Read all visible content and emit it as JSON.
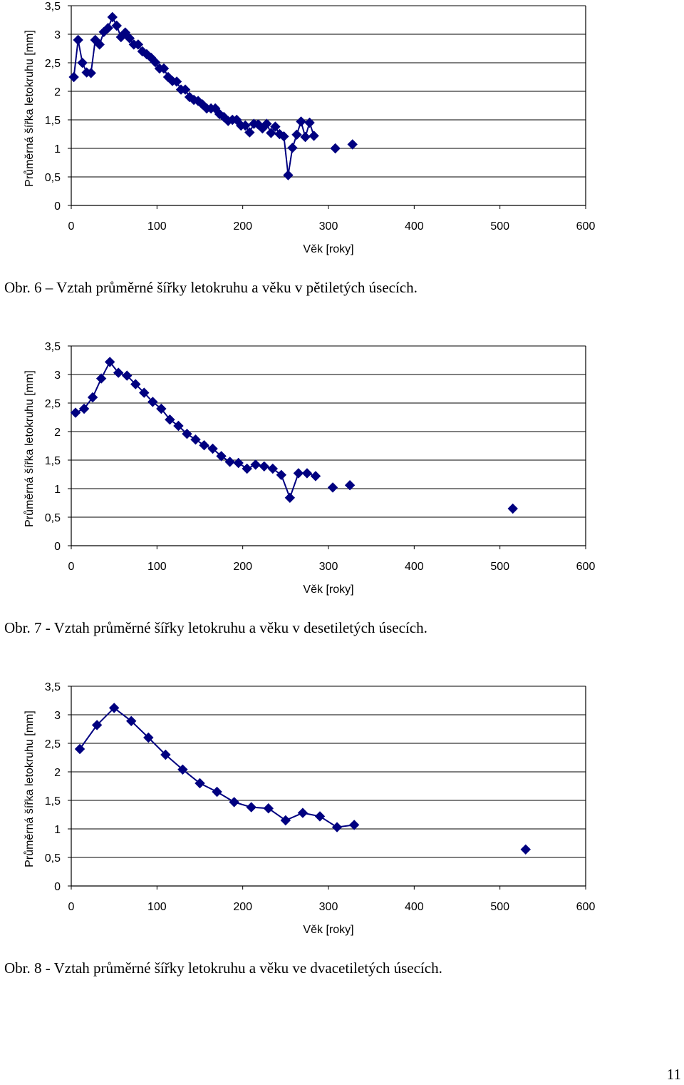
{
  "chart_data": [
    {
      "type": "line",
      "title": "",
      "xlabel": "Věk [roky]",
      "ylabel": "Průměrná šířka letokruhu [mm]",
      "xlim": [
        0,
        600
      ],
      "ylim": [
        0,
        3.5
      ],
      "xticks": [
        "0",
        "100",
        "200",
        "300",
        "400",
        "500",
        "600"
      ],
      "yticks": [
        "0",
        "0,5",
        "1",
        "1,5",
        "2",
        "2,5",
        "3",
        "3,5"
      ],
      "grid": "horizontal",
      "legend": "none",
      "marker": "diamond",
      "color": "#000080",
      "x": [
        3,
        8,
        13,
        18,
        23,
        28,
        33,
        38,
        43,
        48,
        53,
        58,
        63,
        68,
        73,
        78,
        83,
        88,
        93,
        98,
        103,
        108,
        113,
        118,
        123,
        128,
        133,
        138,
        143,
        148,
        153,
        158,
        163,
        168,
        173,
        178,
        183,
        188,
        193,
        198,
        203,
        208,
        213,
        218,
        223,
        228,
        233,
        238,
        243,
        248,
        253,
        258,
        263,
        268,
        273,
        278,
        283,
        308,
        328
      ],
      "y": [
        2.25,
        2.9,
        2.5,
        2.33,
        2.32,
        2.9,
        2.82,
        3.04,
        3.11,
        3.3,
        3.15,
        2.95,
        3.03,
        2.93,
        2.82,
        2.82,
        2.7,
        2.65,
        2.59,
        2.51,
        2.4,
        2.4,
        2.25,
        2.18,
        2.17,
        2.03,
        2.03,
        1.9,
        1.85,
        1.83,
        1.77,
        1.7,
        1.7,
        1.7,
        1.6,
        1.55,
        1.48,
        1.5,
        1.5,
        1.4,
        1.4,
        1.28,
        1.43,
        1.42,
        1.35,
        1.43,
        1.27,
        1.38,
        1.25,
        1.21,
        0.53,
        1.01,
        1.24,
        1.47,
        1.2,
        1.45,
        1.22,
        1.0,
        1.07
      ],
      "connected_until_x": 283,
      "caption": "Obr. 6 – Vztah průměrné šířky letokruhu a věku v pětiletých úsecích."
    },
    {
      "type": "line",
      "title": "",
      "xlabel": "Věk [roky]",
      "ylabel": "Průměrná šířka letokruhu [mm]",
      "xlim": [
        0,
        600
      ],
      "ylim": [
        0,
        3.5
      ],
      "xticks": [
        "0",
        "100",
        "200",
        "300",
        "400",
        "500",
        "600"
      ],
      "yticks": [
        "0",
        "0,5",
        "1",
        "1,5",
        "2",
        "2,5",
        "3",
        "3,5"
      ],
      "grid": "horizontal",
      "legend": "none",
      "marker": "diamond",
      "color": "#000080",
      "x": [
        5,
        15,
        25,
        35,
        45,
        55,
        65,
        75,
        85,
        95,
        105,
        115,
        125,
        135,
        145,
        155,
        165,
        175,
        185,
        195,
        205,
        215,
        225,
        235,
        245,
        255,
        265,
        275,
        285,
        305,
        325,
        515
      ],
      "y": [
        2.33,
        2.4,
        2.6,
        2.93,
        3.22,
        3.03,
        2.98,
        2.83,
        2.68,
        2.52,
        2.4,
        2.21,
        2.1,
        1.96,
        1.86,
        1.76,
        1.7,
        1.57,
        1.47,
        1.45,
        1.35,
        1.42,
        1.39,
        1.35,
        1.24,
        0.84,
        1.27,
        1.27,
        1.22,
        1.02,
        1.06,
        0.65
      ],
      "connected_until_x": 285,
      "caption": "Obr. 7 - Vztah průměrné šířky letokruhu a věku v desetiletých úsecích."
    },
    {
      "type": "line",
      "title": "",
      "xlabel": "Věk [roky]",
      "ylabel": "Průměrná šířka letokruhu [mm]",
      "xlim": [
        0,
        600
      ],
      "ylim": [
        0,
        3.5
      ],
      "xticks": [
        "0",
        "100",
        "200",
        "300",
        "400",
        "500",
        "600"
      ],
      "yticks": [
        "0",
        "0,5",
        "1",
        "1,5",
        "2",
        "2,5",
        "3",
        "3,5"
      ],
      "grid": "horizontal",
      "legend": "none",
      "marker": "diamond",
      "color": "#000080",
      "x": [
        10,
        30,
        50,
        70,
        90,
        110,
        130,
        150,
        170,
        190,
        210,
        230,
        250,
        270,
        290,
        310,
        330,
        530
      ],
      "y": [
        2.4,
        2.82,
        3.12,
        2.89,
        2.6,
        2.3,
        2.04,
        1.8,
        1.65,
        1.47,
        1.38,
        1.36,
        1.15,
        1.28,
        1.22,
        1.03,
        1.07,
        0.64
      ],
      "connected_until_x": 330,
      "caption": "Obr. 8 - Vztah průměrné šířky letokruhu a věku ve dvacetiletých úsecích."
    }
  ],
  "page_number": "11"
}
